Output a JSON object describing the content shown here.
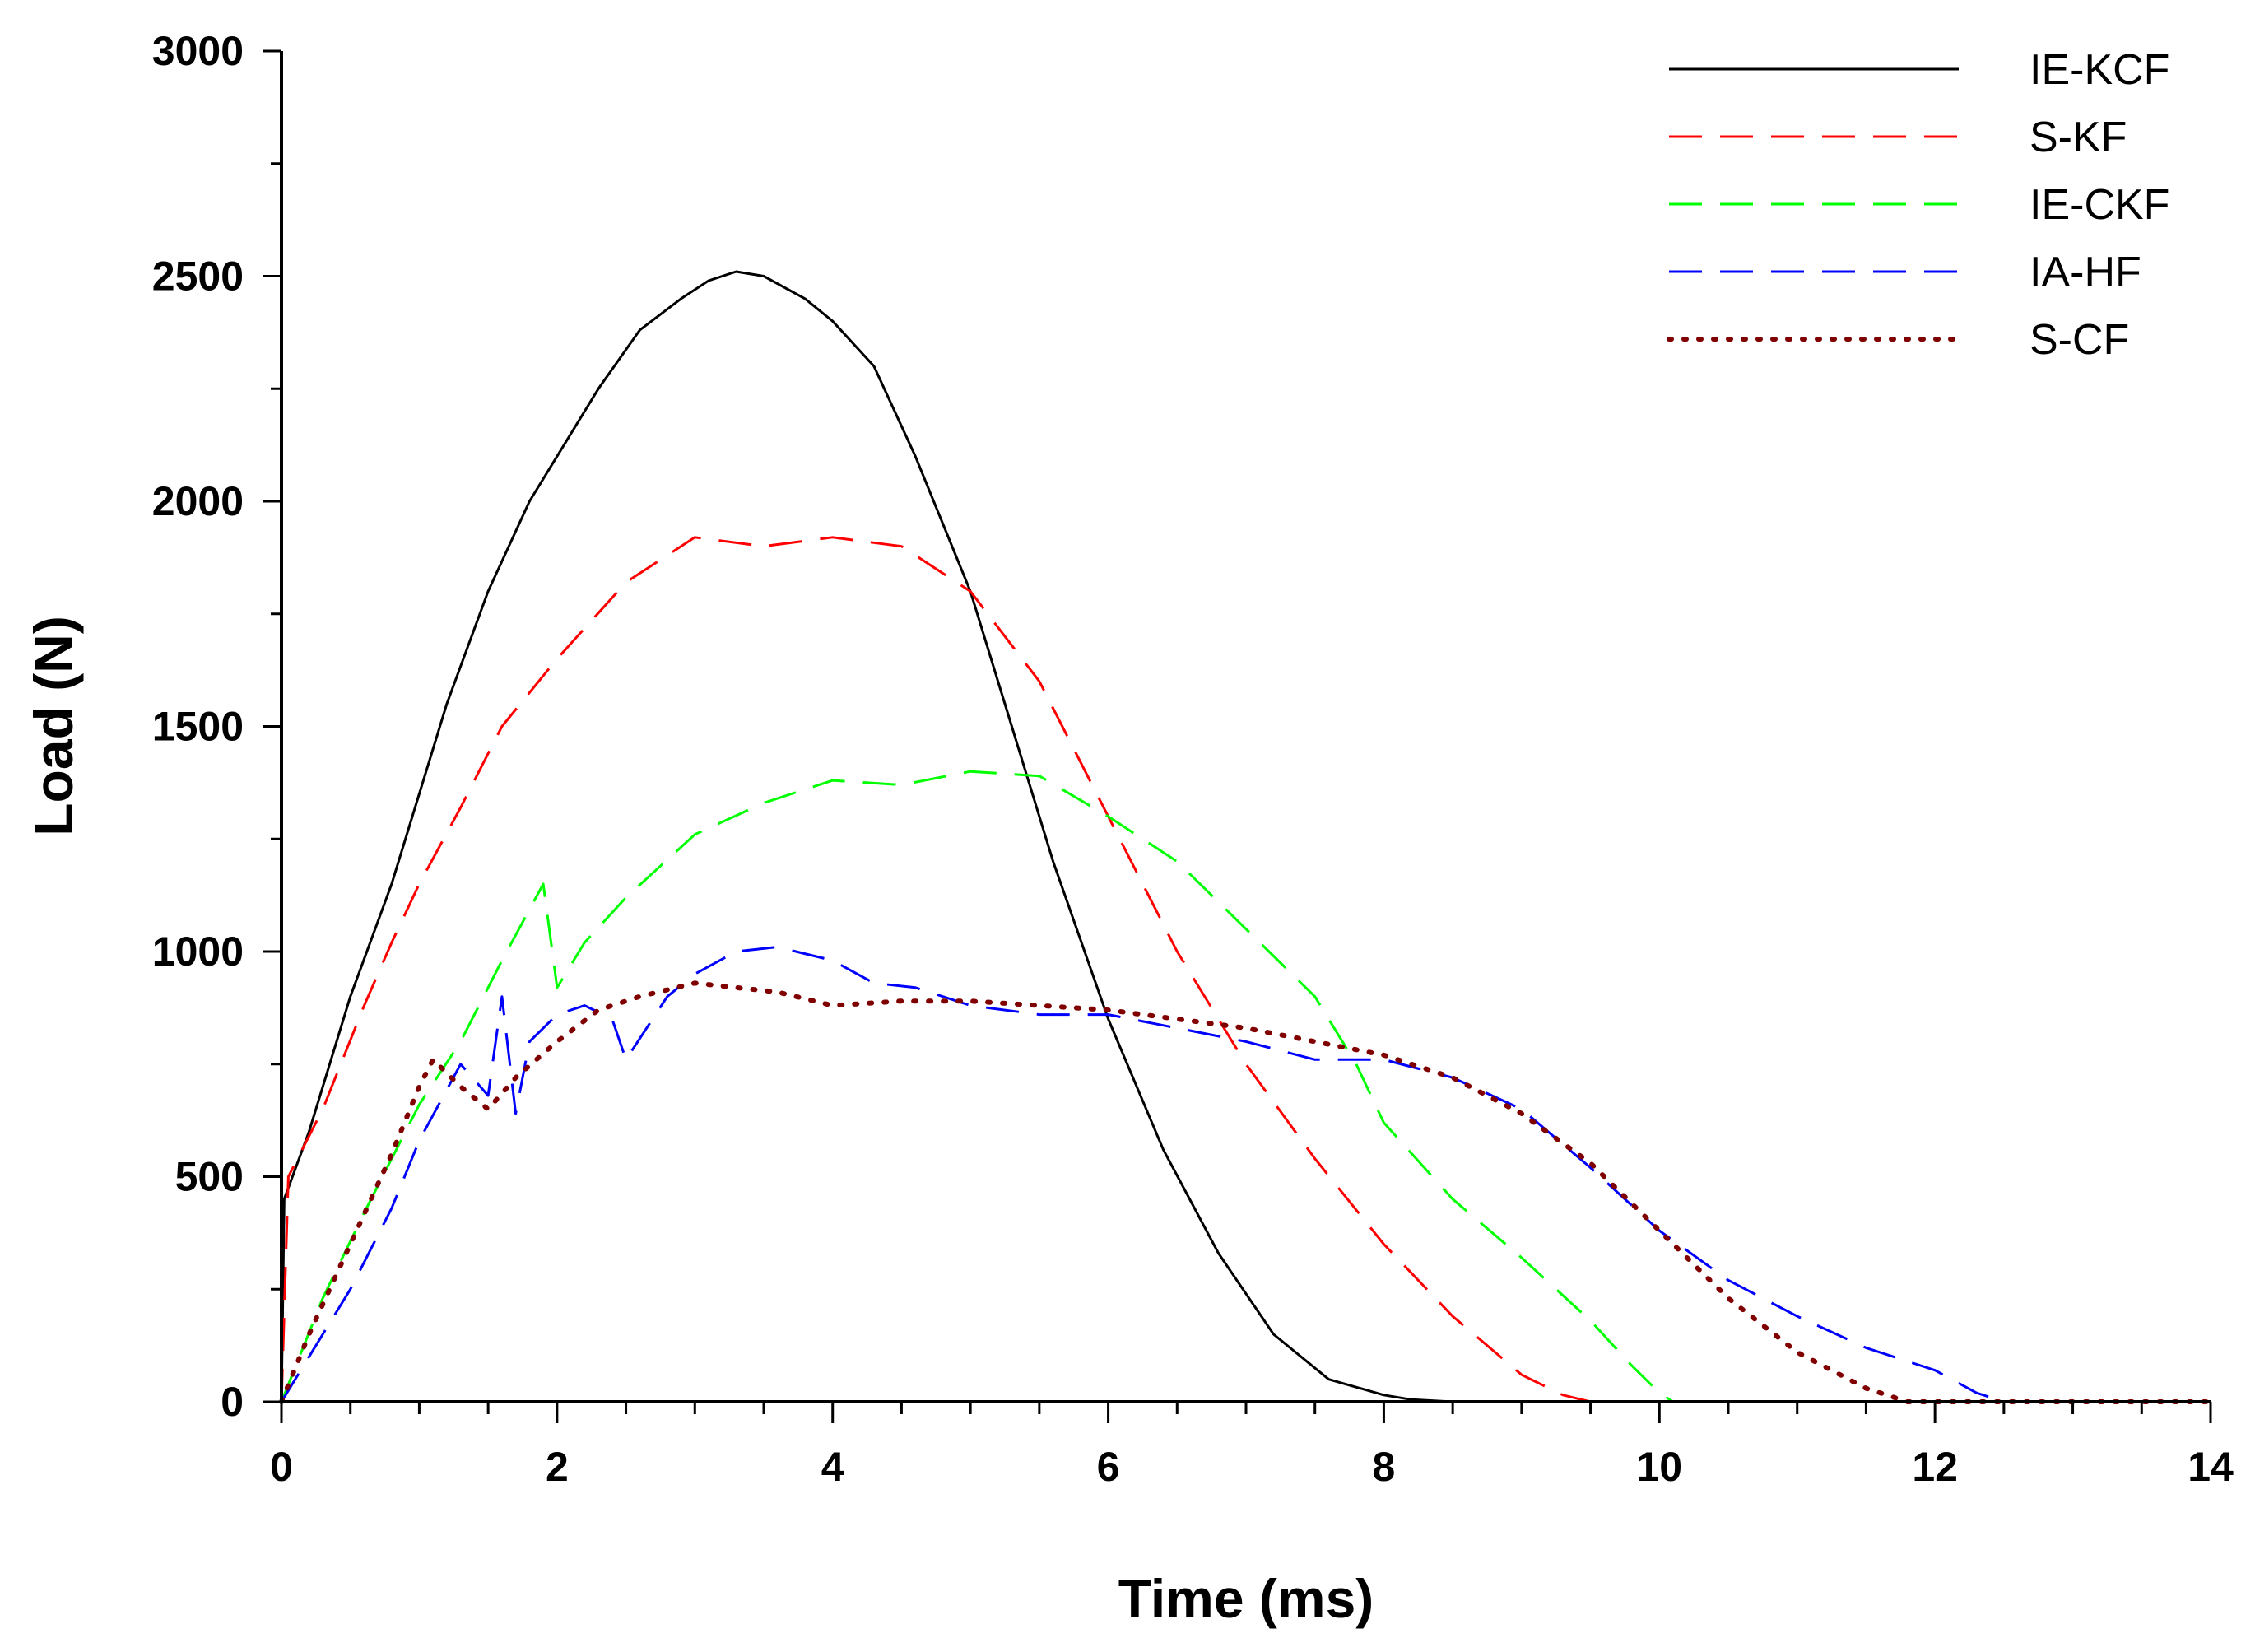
{
  "chart_data": {
    "type": "line",
    "title": "",
    "xlabel": "Time (ms)",
    "ylabel": "Load (N)",
    "xlim": [
      0,
      14
    ],
    "ylim": [
      0,
      3000
    ],
    "xticks": [
      0,
      2,
      4,
      6,
      8,
      10,
      12,
      14
    ],
    "yticks": [
      0,
      500,
      1000,
      1500,
      2000,
      2500,
      3000
    ],
    "grid": false,
    "legend_position": "top-right",
    "series": [
      {
        "name": "IE-KCF",
        "color": "#000000",
        "style": "solid",
        "x": [
          0,
          0.02,
          0.2,
          0.5,
          0.8,
          1.0,
          1.2,
          1.5,
          1.8,
          2.0,
          2.3,
          2.6,
          2.9,
          3.1,
          3.3,
          3.5,
          3.8,
          4.0,
          4.3,
          4.6,
          5.0,
          5.3,
          5.6,
          6.0,
          6.4,
          6.8,
          7.2,
          7.6,
          8.0,
          8.2,
          8.5,
          9.0,
          10.0,
          11.0,
          12.0,
          13.0,
          14.0
        ],
        "y": [
          0,
          450,
          600,
          900,
          1150,
          1350,
          1550,
          1800,
          2000,
          2100,
          2250,
          2380,
          2450,
          2490,
          2510,
          2500,
          2450,
          2400,
          2300,
          2100,
          1800,
          1500,
          1200,
          850,
          560,
          330,
          150,
          50,
          15,
          5,
          0,
          0,
          0,
          0,
          0,
          0,
          0
        ]
      },
      {
        "name": "S-KF",
        "color": "#ff0000",
        "style": "dash",
        "x": [
          0,
          0.05,
          0.3,
          0.6,
          0.8,
          1.0,
          1.3,
          1.6,
          2.0,
          2.5,
          3.0,
          3.5,
          4.0,
          4.5,
          5.0,
          5.5,
          6.0,
          6.5,
          7.0,
          7.5,
          8.0,
          8.5,
          9.0,
          9.3,
          9.5,
          10.0,
          12.0,
          14.0
        ],
        "y": [
          0,
          500,
          650,
          880,
          1020,
          1150,
          1320,
          1500,
          1650,
          1820,
          1920,
          1900,
          1920,
          1900,
          1800,
          1600,
          1300,
          1000,
          750,
          540,
          350,
          190,
          60,
          15,
          0,
          0,
          0,
          0
        ]
      },
      {
        "name": "IE-CKF",
        "color": "#00ff00",
        "style": "dash",
        "x": [
          0,
          0.3,
          0.6,
          1.0,
          1.3,
          1.6,
          1.9,
          2.0,
          2.2,
          2.5,
          3.0,
          3.5,
          4.0,
          4.5,
          5.0,
          5.5,
          6.0,
          6.5,
          7.0,
          7.5,
          7.8,
          8.0,
          8.5,
          9.0,
          9.5,
          9.8,
          10.0,
          10.1,
          12.0,
          14.0
        ],
        "y": [
          0,
          230,
          420,
          660,
          800,
          980,
          1150,
          920,
          1020,
          1120,
          1260,
          1330,
          1380,
          1370,
          1400,
          1390,
          1300,
          1200,
          1050,
          900,
          750,
          620,
          450,
          320,
          180,
          80,
          20,
          0,
          0,
          0
        ]
      },
      {
        "name": "IA-HF",
        "color": "#0000ff",
        "style": "dash",
        "x": [
          0,
          0.2,
          0.5,
          0.8,
          1.0,
          1.3,
          1.5,
          1.6,
          1.7,
          1.8,
          2.0,
          2.2,
          2.4,
          2.5,
          2.8,
          3.0,
          3.3,
          3.6,
          4.0,
          4.3,
          4.6,
          5.0,
          5.5,
          6.0,
          6.5,
          7.0,
          7.5,
          8.0,
          8.5,
          9.0,
          9.5,
          10.0,
          10.5,
          11.0,
          11.5,
          12.0,
          12.3,
          12.5,
          13.0,
          14.0
        ],
        "y": [
          0,
          100,
          250,
          430,
          580,
          750,
          680,
          900,
          640,
          800,
          860,
          880,
          850,
          760,
          900,
          950,
          1000,
          1010,
          980,
          930,
          920,
          880,
          860,
          860,
          830,
          800,
          760,
          760,
          720,
          650,
          520,
          380,
          270,
          190,
          120,
          70,
          20,
          0,
          0,
          0
        ]
      },
      {
        "name": "S-CF",
        "color": "#800000",
        "style": "dotted",
        "x": [
          0,
          0.2,
          0.5,
          0.8,
          1.0,
          1.1,
          1.3,
          1.5,
          1.7,
          2.0,
          2.3,
          2.6,
          3.0,
          3.3,
          3.6,
          4.0,
          4.5,
          5.0,
          5.5,
          6.0,
          6.5,
          7.0,
          7.5,
          8.0,
          8.5,
          9.0,
          9.5,
          10.0,
          10.5,
          11.0,
          11.5,
          11.8,
          12.0,
          14.0
        ],
        "y": [
          0,
          150,
          350,
          550,
          700,
          760,
          700,
          650,
          720,
          800,
          870,
          900,
          930,
          920,
          910,
          880,
          890,
          890,
          880,
          870,
          850,
          830,
          800,
          770,
          720,
          640,
          530,
          380,
          230,
          110,
          30,
          0,
          0,
          0
        ]
      }
    ]
  }
}
